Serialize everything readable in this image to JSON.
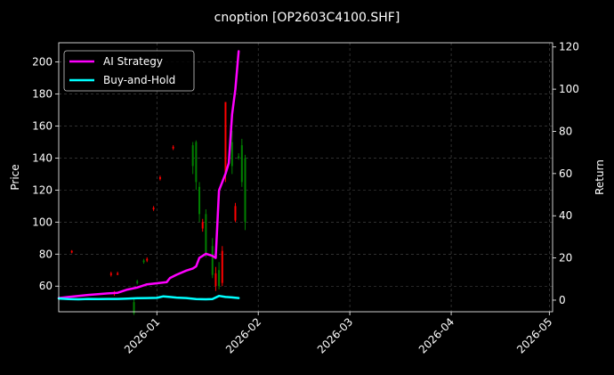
{
  "chart_data": {
    "type": "line",
    "title": "cnoption [OP2603C4100.SHF]",
    "ylabel_left": "Price",
    "ylabel_right": "Return",
    "x_tick_labels": [
      "2026-01",
      "2026-02",
      "2026-03",
      "2026-04",
      "2026-05"
    ],
    "x_tick_days": [
      31,
      62,
      90,
      121,
      151
    ],
    "xlim_days": [
      1,
      152
    ],
    "ylim_left": [
      44,
      212
    ],
    "ylim_right": [
      -5.5,
      122
    ],
    "yticks_left": [
      60,
      80,
      100,
      120,
      140,
      160,
      180,
      200
    ],
    "yticks_right": [
      0,
      20,
      40,
      60,
      80,
      100,
      120
    ],
    "grid": true,
    "legend_position": "top-left",
    "background": "#000000",
    "series": [
      {
        "name": "AI Strategy",
        "axis": "right",
        "color": "#ff00ff",
        "x": [
          1,
          4,
          7,
          10,
          13,
          16,
          19,
          22,
          25,
          28,
          31,
          34,
          35,
          37,
          40,
          42,
          43,
          44,
          46,
          48,
          49,
          50,
          52,
          53,
          54,
          55,
          56
        ],
        "y": [
          1,
          1.5,
          2,
          2.5,
          2.8,
          3.2,
          3.5,
          5,
          6,
          7.5,
          8,
          8.5,
          10.5,
          12,
          14,
          15,
          16,
          20,
          22,
          21,
          20,
          52,
          60,
          65,
          88,
          100,
          118
        ]
      },
      {
        "name": "Buy-and-Hold",
        "axis": "right",
        "color": "#00ffff",
        "x": [
          1,
          4,
          7,
          10,
          13,
          16,
          19,
          22,
          25,
          28,
          31,
          33,
          35,
          37,
          40,
          43,
          46,
          48,
          50,
          52,
          54,
          56
        ],
        "y": [
          0.8,
          0.5,
          0.4,
          0.6,
          0.5,
          0.6,
          0.6,
          0.7,
          0.9,
          1,
          1.1,
          1.8,
          1.5,
          1.2,
          1,
          0.5,
          0.4,
          0.5,
          2,
          1.5,
          1.3,
          1
        ]
      }
    ],
    "candles": [
      {
        "x": 5,
        "open": 82,
        "close": 81,
        "high": 82.5,
        "low": 80.5
      },
      {
        "x": 17,
        "open": 68,
        "close": 67,
        "high": 69,
        "low": 66
      },
      {
        "x": 19,
        "open": 68,
        "close": 67,
        "high": 69,
        "low": 67
      },
      {
        "x": 18,
        "open": 56,
        "close": 55,
        "high": 57,
        "low": 54
      },
      {
        "x": 24,
        "open": 43,
        "close": 50,
        "high": 52,
        "low": 42
      },
      {
        "x": 25,
        "open": 62,
        "close": 63,
        "high": 64,
        "low": 61
      },
      {
        "x": 27,
        "open": 75,
        "close": 76,
        "high": 77,
        "low": 74
      },
      {
        "x": 28,
        "open": 77,
        "close": 76,
        "high": 78,
        "low": 75
      },
      {
        "x": 30,
        "open": 109,
        "close": 108,
        "high": 110,
        "low": 107
      },
      {
        "x": 32,
        "open": 128,
        "close": 127,
        "high": 129,
        "low": 126
      },
      {
        "x": 36,
        "open": 147,
        "close": 146,
        "high": 148,
        "low": 145
      },
      {
        "x": 42,
        "open": 135,
        "close": 148,
        "high": 150,
        "low": 130
      },
      {
        "x": 43,
        "open": 125,
        "close": 150,
        "high": 151,
        "low": 120
      },
      {
        "x": 44,
        "open": 105,
        "close": 122,
        "high": 125,
        "low": 100
      },
      {
        "x": 45,
        "open": 100,
        "close": 96,
        "high": 102,
        "low": 94
      },
      {
        "x": 46,
        "open": 80,
        "close": 105,
        "high": 108,
        "low": 78
      },
      {
        "x": 48,
        "open": 67,
        "close": 85,
        "high": 90,
        "low": 65
      },
      {
        "x": 49,
        "open": 68,
        "close": 60,
        "high": 72,
        "low": 57
      },
      {
        "x": 50,
        "open": 60,
        "close": 70,
        "high": 75,
        "low": 58
      },
      {
        "x": 51,
        "open": 82,
        "close": 62,
        "high": 85,
        "low": 60
      },
      {
        "x": 52,
        "open": 175,
        "close": 130,
        "high": 175,
        "low": 125
      },
      {
        "x": 54,
        "open": 135,
        "close": 150,
        "high": 157,
        "low": 130
      },
      {
        "x": 55,
        "open": 110,
        "close": 101,
        "high": 112,
        "low": 100
      },
      {
        "x": 56,
        "open": 140,
        "close": 141,
        "high": 143,
        "low": 139
      },
      {
        "x": 57,
        "open": 125,
        "close": 148,
        "high": 152,
        "low": 122
      },
      {
        "x": 58,
        "open": 100,
        "close": 140,
        "high": 142,
        "low": 95
      }
    ],
    "candle_up_color": "#008000",
    "candle_down_color": "#ff0000"
  }
}
